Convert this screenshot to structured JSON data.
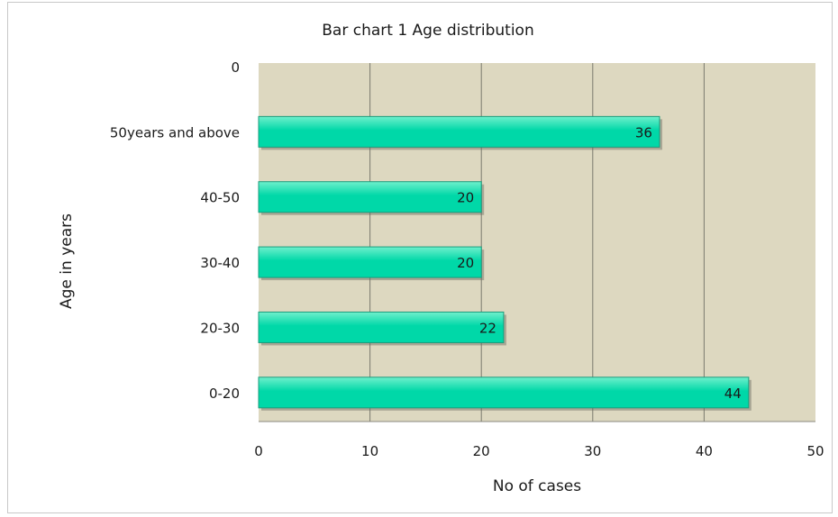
{
  "chart_data": {
    "type": "bar",
    "orientation": "horizontal",
    "title": "Bar chart 1  Age distribution",
    "xlabel": "No of cases",
    "ylabel": "Age in years",
    "categories": [
      "0-20",
      "20-30",
      "30-40",
      "40-50",
      "50years and above",
      "0"
    ],
    "values": [
      44,
      22,
      20,
      20,
      36,
      null
    ],
    "data_labels": [
      "44",
      "22",
      "20",
      "20",
      "36",
      ""
    ],
    "xlim": [
      0,
      50
    ],
    "xticks": [
      0,
      10,
      20,
      30,
      40,
      50
    ],
    "grid": "vertical",
    "legend": "none",
    "colors": {
      "plot_background": "#ddd8c0",
      "bar_fill": "#00d8a8",
      "bar_fill_light": "#6ff0cc",
      "bar_edge": "#1a9c7c",
      "grid": "#7a7a6e"
    }
  }
}
